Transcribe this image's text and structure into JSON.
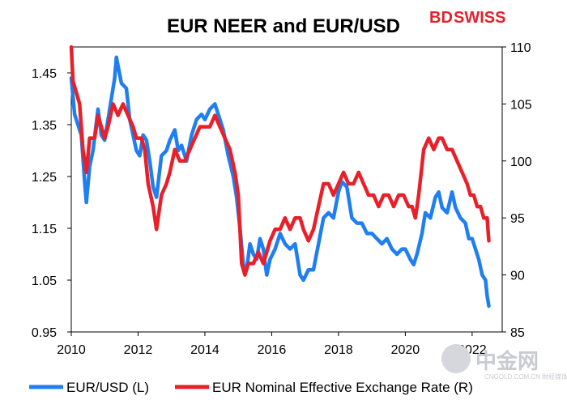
{
  "brand": {
    "logo_bd": "BD",
    "logo_swiss": "SWISS",
    "accent": "#e4202e"
  },
  "watermark": {
    "cn": "中金网",
    "sub": "CNGOLD.COM.CN 財經媒体"
  },
  "chart_data": {
    "type": "line",
    "title": "EUR NEER and EUR/USD",
    "x_ticks": [
      "2010",
      "2012",
      "2014",
      "2016",
      "2018",
      "2020",
      "2022"
    ],
    "xlim": [
      2010,
      2022.9
    ],
    "y_left": {
      "ticks": [
        "0.95",
        "1.05",
        "1.15",
        "1.25",
        "1.35",
        "1.45"
      ],
      "ylim": [
        0.95,
        1.5
      ]
    },
    "y_right": {
      "ticks": [
        "85",
        "90",
        "95",
        "100",
        "105",
        "110"
      ],
      "ylim": [
        85,
        110
      ]
    },
    "legend_position": "bottom",
    "series": [
      {
        "name": "EUR/USD (L)",
        "axis": "left",
        "color": "#1f7ff0",
        "points": [
          [
            2010.0,
            1.44
          ],
          [
            2010.1,
            1.37
          ],
          [
            2010.2,
            1.35
          ],
          [
            2010.3,
            1.33
          ],
          [
            2010.4,
            1.24
          ],
          [
            2010.45,
            1.2
          ],
          [
            2010.55,
            1.27
          ],
          [
            2010.65,
            1.3
          ],
          [
            2010.8,
            1.38
          ],
          [
            2010.9,
            1.33
          ],
          [
            2011.0,
            1.32
          ],
          [
            2011.15,
            1.38
          ],
          [
            2011.3,
            1.44
          ],
          [
            2011.35,
            1.48
          ],
          [
            2011.5,
            1.43
          ],
          [
            2011.65,
            1.42
          ],
          [
            2011.75,
            1.36
          ],
          [
            2011.85,
            1.33
          ],
          [
            2011.95,
            1.3
          ],
          [
            2012.05,
            1.29
          ],
          [
            2012.15,
            1.33
          ],
          [
            2012.25,
            1.32
          ],
          [
            2012.35,
            1.28
          ],
          [
            2012.45,
            1.23
          ],
          [
            2012.55,
            1.21
          ],
          [
            2012.7,
            1.29
          ],
          [
            2012.85,
            1.3
          ],
          [
            2012.95,
            1.32
          ],
          [
            2013.1,
            1.34
          ],
          [
            2013.2,
            1.3
          ],
          [
            2013.3,
            1.31
          ],
          [
            2013.45,
            1.28
          ],
          [
            2013.6,
            1.33
          ],
          [
            2013.75,
            1.36
          ],
          [
            2013.9,
            1.37
          ],
          [
            2014.0,
            1.36
          ],
          [
            2014.15,
            1.38
          ],
          [
            2014.3,
            1.39
          ],
          [
            2014.45,
            1.36
          ],
          [
            2014.55,
            1.34
          ],
          [
            2014.7,
            1.29
          ],
          [
            2014.85,
            1.25
          ],
          [
            2014.95,
            1.21
          ],
          [
            2015.05,
            1.15
          ],
          [
            2015.15,
            1.08
          ],
          [
            2015.25,
            1.07
          ],
          [
            2015.35,
            1.12
          ],
          [
            2015.45,
            1.1
          ],
          [
            2015.55,
            1.09
          ],
          [
            2015.65,
            1.13
          ],
          [
            2015.75,
            1.11
          ],
          [
            2015.85,
            1.06
          ],
          [
            2015.95,
            1.09
          ],
          [
            2016.1,
            1.11
          ],
          [
            2016.25,
            1.14
          ],
          [
            2016.4,
            1.12
          ],
          [
            2016.55,
            1.11
          ],
          [
            2016.7,
            1.12
          ],
          [
            2016.85,
            1.06
          ],
          [
            2016.95,
            1.05
          ],
          [
            2017.1,
            1.07
          ],
          [
            2017.25,
            1.07
          ],
          [
            2017.4,
            1.12
          ],
          [
            2017.55,
            1.17
          ],
          [
            2017.7,
            1.18
          ],
          [
            2017.85,
            1.17
          ],
          [
            2018.0,
            1.22
          ],
          [
            2018.1,
            1.24
          ],
          [
            2018.25,
            1.23
          ],
          [
            2018.4,
            1.17
          ],
          [
            2018.55,
            1.16
          ],
          [
            2018.7,
            1.16
          ],
          [
            2018.85,
            1.14
          ],
          [
            2019.0,
            1.14
          ],
          [
            2019.15,
            1.13
          ],
          [
            2019.3,
            1.12
          ],
          [
            2019.45,
            1.13
          ],
          [
            2019.6,
            1.11
          ],
          [
            2019.75,
            1.1
          ],
          [
            2019.9,
            1.11
          ],
          [
            2020.0,
            1.11
          ],
          [
            2020.15,
            1.09
          ],
          [
            2020.25,
            1.08
          ],
          [
            2020.35,
            1.1
          ],
          [
            2020.5,
            1.14
          ],
          [
            2020.6,
            1.18
          ],
          [
            2020.75,
            1.17
          ],
          [
            2020.9,
            1.21
          ],
          [
            2021.0,
            1.22
          ],
          [
            2021.1,
            1.19
          ],
          [
            2021.25,
            1.18
          ],
          [
            2021.4,
            1.22
          ],
          [
            2021.5,
            1.19
          ],
          [
            2021.65,
            1.17
          ],
          [
            2021.8,
            1.16
          ],
          [
            2021.9,
            1.13
          ],
          [
            2022.0,
            1.13
          ],
          [
            2022.1,
            1.11
          ],
          [
            2022.2,
            1.09
          ],
          [
            2022.3,
            1.06
          ],
          [
            2022.4,
            1.05
          ],
          [
            2022.45,
            1.02
          ],
          [
            2022.5,
            1.0
          ]
        ]
      },
      {
        "name": "EUR Nominal Effective Exchange Rate (R)",
        "axis": "right",
        "color": "#e8202a",
        "points": [
          [
            2010.0,
            110
          ],
          [
            2010.05,
            107
          ],
          [
            2010.15,
            106
          ],
          [
            2010.25,
            105
          ],
          [
            2010.35,
            101
          ],
          [
            2010.45,
            99
          ],
          [
            2010.55,
            102
          ],
          [
            2010.7,
            102
          ],
          [
            2010.8,
            104
          ],
          [
            2010.9,
            103
          ],
          [
            2011.0,
            102
          ],
          [
            2011.1,
            103
          ],
          [
            2011.25,
            105
          ],
          [
            2011.4,
            104
          ],
          [
            2011.55,
            105
          ],
          [
            2011.7,
            104
          ],
          [
            2011.85,
            103
          ],
          [
            2011.95,
            102
          ],
          [
            2012.1,
            102
          ],
          [
            2012.2,
            101
          ],
          [
            2012.3,
            98
          ],
          [
            2012.45,
            96
          ],
          [
            2012.55,
            94
          ],
          [
            2012.7,
            97
          ],
          [
            2012.85,
            98
          ],
          [
            2012.95,
            99
          ],
          [
            2013.1,
            101
          ],
          [
            2013.25,
            100
          ],
          [
            2013.4,
            100
          ],
          [
            2013.55,
            101
          ],
          [
            2013.7,
            102
          ],
          [
            2013.85,
            103
          ],
          [
            2014.0,
            103
          ],
          [
            2014.15,
            103
          ],
          [
            2014.3,
            104
          ],
          [
            2014.45,
            103
          ],
          [
            2014.6,
            102
          ],
          [
            2014.75,
            101
          ],
          [
            2014.9,
            99
          ],
          [
            2015.0,
            97
          ],
          [
            2015.1,
            91
          ],
          [
            2015.2,
            90
          ],
          [
            2015.3,
            91
          ],
          [
            2015.45,
            91
          ],
          [
            2015.6,
            92
          ],
          [
            2015.75,
            91
          ],
          [
            2015.85,
            92
          ],
          [
            2015.95,
            93
          ],
          [
            2016.1,
            94
          ],
          [
            2016.25,
            94
          ],
          [
            2016.4,
            95
          ],
          [
            2016.55,
            94
          ],
          [
            2016.7,
            95
          ],
          [
            2016.85,
            95
          ],
          [
            2016.95,
            94
          ],
          [
            2017.1,
            93
          ],
          [
            2017.25,
            94
          ],
          [
            2017.4,
            96
          ],
          [
            2017.55,
            98
          ],
          [
            2017.7,
            98
          ],
          [
            2017.85,
            97
          ],
          [
            2018.0,
            98
          ],
          [
            2018.15,
            99
          ],
          [
            2018.3,
            98
          ],
          [
            2018.45,
            98
          ],
          [
            2018.6,
            99
          ],
          [
            2018.75,
            98
          ],
          [
            2018.9,
            97
          ],
          [
            2019.05,
            97
          ],
          [
            2019.2,
            96
          ],
          [
            2019.35,
            97
          ],
          [
            2019.5,
            97
          ],
          [
            2019.65,
            96
          ],
          [
            2019.8,
            97
          ],
          [
            2019.95,
            97
          ],
          [
            2020.1,
            96
          ],
          [
            2020.2,
            96
          ],
          [
            2020.3,
            95
          ],
          [
            2020.4,
            97
          ],
          [
            2020.55,
            101
          ],
          [
            2020.7,
            102
          ],
          [
            2020.85,
            101
          ],
          [
            2021.0,
            102
          ],
          [
            2021.1,
            102
          ],
          [
            2021.25,
            101
          ],
          [
            2021.4,
            101
          ],
          [
            2021.55,
            100
          ],
          [
            2021.7,
            99
          ],
          [
            2021.85,
            98
          ],
          [
            2021.95,
            97
          ],
          [
            2022.05,
            97
          ],
          [
            2022.15,
            96
          ],
          [
            2022.25,
            96
          ],
          [
            2022.35,
            95
          ],
          [
            2022.45,
            95
          ],
          [
            2022.5,
            93
          ]
        ]
      }
    ]
  }
}
